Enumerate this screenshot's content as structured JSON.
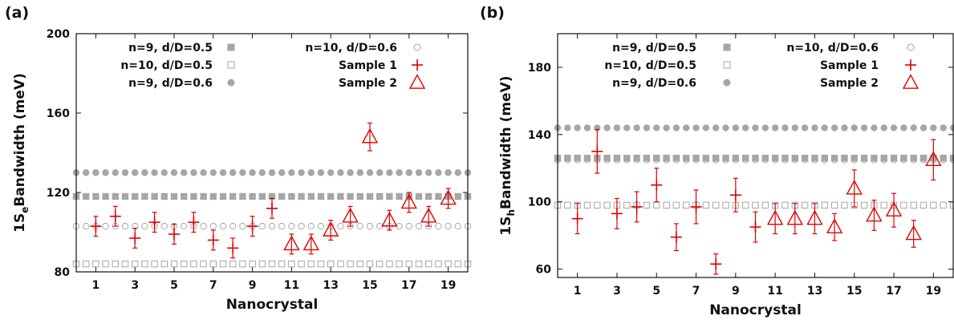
{
  "chart_data": [
    {
      "type": "scatter",
      "panel_label": "(a)",
      "xlabel": "Nanocrystal",
      "ylabel_main": "1S",
      "ylabel_sub": "e",
      "ylabel_rest": "Bandwidth (meV)",
      "xlim": [
        0,
        20
      ],
      "ylim": [
        80,
        200
      ],
      "xticks": [
        1,
        3,
        5,
        7,
        9,
        11,
        13,
        15,
        17,
        19
      ],
      "yticks": [
        80,
        120,
        160,
        200
      ],
      "grid": false,
      "reference_lines": [
        {
          "name": "n=9, d/D=0.5",
          "value": 118,
          "marker": "filled-square",
          "color": "#a6a6a6"
        },
        {
          "name": "n=10, d/D=0.5",
          "value": 84,
          "marker": "open-square",
          "color": "#a6a6a6"
        },
        {
          "name": "n=9, d/D=0.6",
          "value": 130,
          "marker": "filled-circle",
          "color": "#a6a6a6"
        },
        {
          "name": "n=10, d/D=0.6",
          "value": 103,
          "marker": "open-circle",
          "color": "#a6a6a6"
        }
      ],
      "series": [
        {
          "name": "Sample 1",
          "marker": "plus",
          "color": "#e00000",
          "x": [
            1,
            2,
            3,
            4,
            5,
            6,
            7,
            8,
            9,
            10
          ],
          "y": [
            103,
            108,
            97,
            105,
            99,
            105,
            96,
            92,
            103,
            112
          ],
          "err": [
            5,
            5,
            5,
            5,
            5,
            5,
            5,
            5,
            5,
            5
          ]
        },
        {
          "name": "Sample 2",
          "marker": "triangle",
          "color": "#e00000",
          "x": [
            11,
            12,
            13,
            14,
            15,
            16,
            17,
            18,
            19
          ],
          "y": [
            94,
            94,
            101,
            108,
            148,
            106,
            115,
            108,
            117
          ],
          "err": [
            5,
            5,
            5,
            5,
            7,
            5,
            5,
            5,
            5
          ]
        }
      ],
      "legend_left": [
        "n=9, d/D=0.5",
        "n=10, d/D=0.5",
        "n=9, d/D=0.6"
      ],
      "legend_right": [
        "n=10, d/D=0.6",
        "Sample 1",
        "Sample 2"
      ]
    },
    {
      "type": "scatter",
      "panel_label": "(b)",
      "xlabel": "Nanocrystal",
      "ylabel_main": "1S",
      "ylabel_sub": "h",
      "ylabel_rest": "Bandwidth (meV)",
      "xlim": [
        0,
        20
      ],
      "ylim": [
        55,
        200
      ],
      "xticks": [
        1,
        3,
        5,
        7,
        9,
        11,
        13,
        15,
        17,
        19
      ],
      "yticks": [
        60,
        100,
        140,
        180
      ],
      "grid": false,
      "reference_lines": [
        {
          "name": "n=9, d/D=0.5",
          "value": 126,
          "marker": "filled-square",
          "color": "#a6a6a6"
        },
        {
          "name": "n=10, d/D=0.5",
          "value": 98,
          "marker": "open-square",
          "color": "#a6a6a6"
        },
        {
          "name": "n=9, d/D=0.6",
          "value": 144,
          "marker": "filled-circle",
          "color": "#a6a6a6"
        },
        {
          "name": "n=10, d/D=0.6",
          "value": 125,
          "marker": "open-circle",
          "color": "#a6a6a6"
        }
      ],
      "series": [
        {
          "name": "Sample 1",
          "marker": "plus",
          "color": "#e00000",
          "x": [
            1,
            2,
            3,
            4,
            5,
            6,
            7,
            8,
            9,
            10
          ],
          "y": [
            90,
            130,
            93,
            97,
            110,
            79,
            97,
            63,
            104,
            85
          ],
          "err": [
            9,
            13,
            9,
            9,
            10,
            8,
            10,
            6,
            10,
            9
          ]
        },
        {
          "name": "Sample 2",
          "marker": "triangle",
          "color": "#e00000",
          "x": [
            11,
            12,
            13,
            14,
            15,
            16,
            17,
            18,
            19
          ],
          "y": [
            90,
            90,
            90,
            85,
            108,
            92,
            95,
            81,
            125
          ],
          "err": [
            9,
            9,
            9,
            8,
            11,
            9,
            10,
            8,
            12
          ]
        }
      ],
      "legend_left": [
        "n=9, d/D=0.5",
        "n=10, d/D=0.5",
        "n=9, d/D=0.6"
      ],
      "legend_right": [
        "n=10, d/D=0.6",
        "Sample 1",
        "Sample 2"
      ]
    }
  ]
}
